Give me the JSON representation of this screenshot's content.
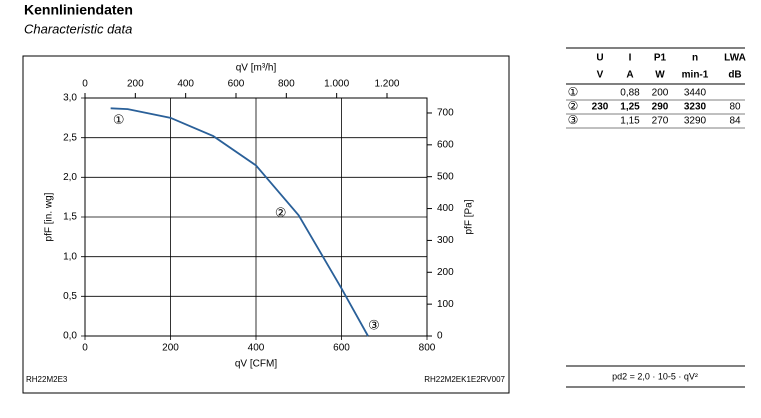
{
  "header": {
    "title": "Kennliniendaten",
    "subtitle": "Characteristic data"
  },
  "chart_data": {
    "type": "line",
    "x_label": "qV [CFM]",
    "x2_label": "qV [m³/h]",
    "y_label": "pfF [in. wg]",
    "y2_label": "pfF [Pa]",
    "x": [
      60,
      100,
      200,
      300,
      400,
      500,
      600,
      662
    ],
    "series": [
      {
        "name": "pfF",
        "color": "#2a6099",
        "values": [
          2.87,
          2.86,
          2.75,
          2.52,
          2.15,
          1.52,
          0.6,
          0.0
        ]
      }
    ],
    "point_labels": [
      "①",
      "②",
      "③"
    ],
    "xlim": [
      0,
      800
    ],
    "xticks": [
      0,
      200,
      400,
      600,
      800
    ],
    "x2lim": [
      0,
      1359
    ],
    "x2ticks": [
      0,
      200,
      400,
      600,
      800,
      {
        "value": 1000,
        "label": "1.000"
      },
      {
        "value": 1200,
        "label": "1.200"
      }
    ],
    "ylim": [
      0,
      3.0
    ],
    "yticks": [
      {
        "value": 0,
        "label": "0,0"
      },
      {
        "value": 0.5,
        "label": "0,5"
      },
      {
        "value": 1.0,
        "label": "1,0"
      },
      {
        "value": 1.5,
        "label": "1,5"
      },
      {
        "value": 2.0,
        "label": "2,0"
      },
      {
        "value": 2.5,
        "label": "2,5"
      },
      {
        "value": 3.0,
        "label": "3,0"
      }
    ],
    "y2lim": [
      0,
      747
    ],
    "y2ticks": [
      0,
      100,
      200,
      300,
      400,
      500,
      600,
      700
    ],
    "grid": true
  },
  "codes": {
    "left": "RH22M2E3",
    "right": "RH22M2EK1E2RV007"
  },
  "table": {
    "headers": [
      "U",
      "I",
      "P1",
      "n",
      "LWA"
    ],
    "units": [
      "V",
      "A",
      "W",
      "min-1",
      "dB"
    ],
    "rows": [
      {
        "marker": "①",
        "cells": [
          null,
          "0,88",
          "200",
          "3440",
          null
        ]
      },
      {
        "marker": "②",
        "cells": [
          "230",
          "1,25",
          "290",
          "3230",
          "80"
        ]
      },
      {
        "marker": "③",
        "cells": [
          null,
          "1,15",
          "270",
          "3290",
          "84"
        ]
      }
    ]
  },
  "formula": "pd2 = 2,0 · 10-5 · qV²"
}
